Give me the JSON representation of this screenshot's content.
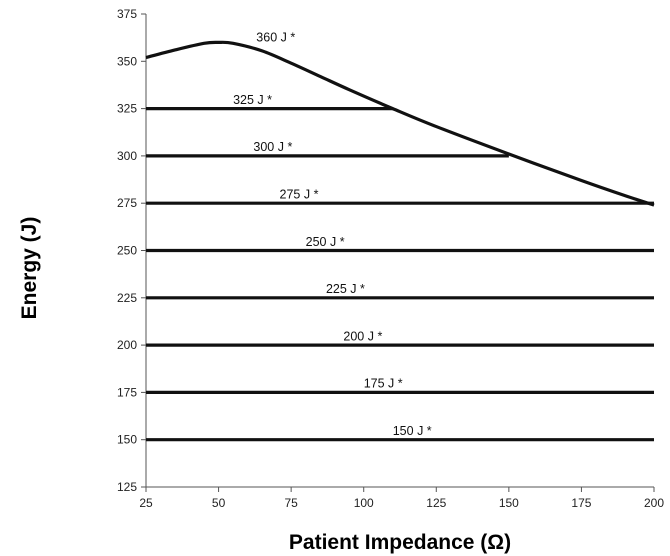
{
  "chart_data": {
    "type": "line",
    "title": "",
    "xlabel": "Patient Impedance (Ω)",
    "ylabel": "Energy (J)",
    "xlim": [
      25,
      200
    ],
    "ylim": [
      125,
      375
    ],
    "x_ticks": [
      25,
      50,
      75,
      100,
      125,
      150,
      175,
      200
    ],
    "y_ticks": [
      125,
      150,
      175,
      200,
      225,
      250,
      275,
      300,
      325,
      350,
      375
    ],
    "grid": false,
    "legend": "none",
    "line_color": "#111111",
    "series": [
      {
        "label": "360 J *",
        "x": [
          25,
          35,
          45,
          50,
          55,
          65,
          75,
          85,
          95,
          110,
          125,
          150,
          175,
          190,
          200
        ],
        "y": [
          352,
          356,
          359.5,
          360,
          359.5,
          355.5,
          349,
          342,
          335,
          325,
          315.5,
          301,
          287,
          279,
          274
        ]
      },
      {
        "label": "325 J *",
        "x": [
          25,
          110
        ],
        "y": [
          325,
          325
        ]
      },
      {
        "label": "300 J *",
        "x": [
          25,
          150
        ],
        "y": [
          300,
          300
        ]
      },
      {
        "label": "275 J *",
        "x": [
          25,
          200
        ],
        "y": [
          275,
          275
        ]
      },
      {
        "label": "250 J *",
        "x": [
          25,
          200
        ],
        "y": [
          250,
          250
        ]
      },
      {
        "label": "225 J *",
        "x": [
          25,
          200
        ],
        "y": [
          225,
          225
        ]
      },
      {
        "label": "200 J *",
        "x": [
          25,
          200
        ],
        "y": [
          200,
          200
        ]
      },
      {
        "label": "175 J *",
        "x": [
          25,
          200
        ],
        "y": [
          175,
          175
        ]
      },
      {
        "label": "150 J *",
        "x": [
          25,
          200
        ],
        "y": [
          150,
          150
        ]
      }
    ]
  }
}
